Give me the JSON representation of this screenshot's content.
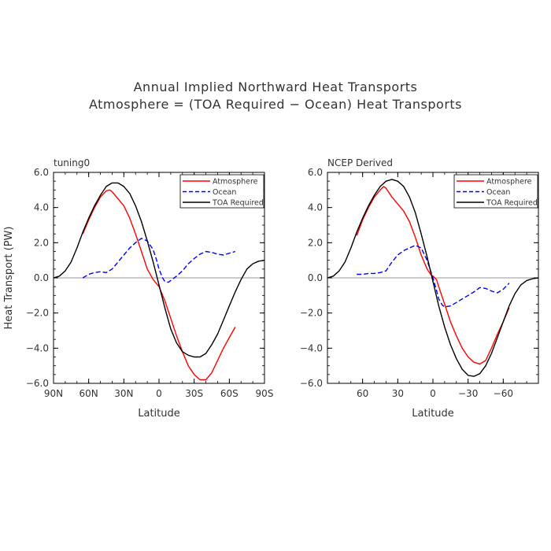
{
  "figure": {
    "title_line1": "Annual Implied Northward Heat Transports",
    "title_line2": "Atmosphere = (TOA Required − Ocean) Heat Transports"
  },
  "colors": {
    "atmosphere": "#ff0000",
    "ocean": "#0000ff",
    "toa": "#000000",
    "zero_line": "#aaaaaa"
  },
  "chart_data": [
    {
      "type": "line",
      "panel_label": "tuning0",
      "ylabel": "Heat Transport (PW)",
      "xlabel": "Latitude",
      "xlim": [
        90,
        -90
      ],
      "ylim": [
        -6,
        6
      ],
      "x_ticks": [
        90,
        60,
        30,
        0,
        -30,
        -60,
        -90
      ],
      "x_tick_labels": [
        "90N",
        "60N",
        "30N",
        "0",
        "30S",
        "60S",
        "90S"
      ],
      "y_ticks": [
        -6,
        -4,
        -2,
        0,
        2,
        4,
        6
      ],
      "y_tick_labels": [
        "−6.0",
        "−4.0",
        "−2.0",
        "0.0",
        "2.0",
        "4.0",
        "6.0"
      ],
      "legend_position": "top-right",
      "series": [
        {
          "name": "Atmosphere",
          "color_key": "atmosphere",
          "dash": "solid",
          "x": [
            65,
            60,
            55,
            50,
            45,
            42,
            40,
            35,
            30,
            25,
            20,
            15,
            10,
            5,
            0,
            -5,
            -10,
            -15,
            -20,
            -25,
            -30,
            -35,
            -40,
            -45,
            -50,
            -55,
            -60,
            -65
          ],
          "y": [
            2.5,
            3.3,
            4.0,
            4.6,
            4.95,
            5.0,
            4.9,
            4.5,
            4.1,
            3.4,
            2.5,
            1.5,
            0.5,
            -0.1,
            -0.5,
            -1.3,
            -2.3,
            -3.3,
            -4.2,
            -5.0,
            -5.5,
            -5.8,
            -5.8,
            -5.4,
            -4.7,
            -4.0,
            -3.4,
            -2.8
          ]
        },
        {
          "name": "Ocean",
          "color_key": "ocean",
          "dash": "dashed",
          "x": [
            65,
            60,
            55,
            50,
            45,
            40,
            35,
            30,
            25,
            20,
            15,
            10,
            5,
            2,
            0,
            -3,
            -5,
            -8,
            -10,
            -15,
            -20,
            -25,
            -30,
            -35,
            -40,
            -45,
            -50,
            -55,
            -60,
            -65
          ],
          "y": [
            0.0,
            0.2,
            0.3,
            0.35,
            0.3,
            0.5,
            0.9,
            1.3,
            1.7,
            2.0,
            2.25,
            2.1,
            1.6,
            1.0,
            0.5,
            0.0,
            -0.2,
            -0.25,
            -0.15,
            0.1,
            0.4,
            0.8,
            1.1,
            1.35,
            1.5,
            1.45,
            1.35,
            1.3,
            1.4,
            1.5
          ]
        },
        {
          "name": "TOA Required",
          "color_key": "toa",
          "dash": "solid",
          "x": [
            90,
            85,
            80,
            75,
            70,
            65,
            60,
            55,
            50,
            45,
            40,
            35,
            30,
            25,
            20,
            15,
            10,
            5,
            0,
            -5,
            -10,
            -15,
            -20,
            -25,
            -30,
            -35,
            -40,
            -45,
            -50,
            -55,
            -60,
            -65,
            -70,
            -75,
            -80,
            -85,
            -90
          ],
          "y": [
            0.0,
            0.1,
            0.4,
            0.9,
            1.7,
            2.6,
            3.4,
            4.1,
            4.7,
            5.2,
            5.4,
            5.4,
            5.2,
            4.8,
            4.1,
            3.2,
            2.1,
            0.9,
            -0.4,
            -1.7,
            -2.9,
            -3.7,
            -4.2,
            -4.4,
            -4.5,
            -4.5,
            -4.3,
            -3.8,
            -3.2,
            -2.4,
            -1.6,
            -0.8,
            -0.1,
            0.5,
            0.8,
            0.95,
            1.0
          ]
        }
      ]
    },
    {
      "type": "line",
      "panel_label": "NCEP Derived",
      "ylabel": "",
      "xlabel": "Latitude",
      "xlim": [
        90,
        -90
      ],
      "ylim": [
        -6,
        6
      ],
      "x_ticks": [
        60,
        30,
        0,
        -30,
        -60
      ],
      "x_tick_labels": [
        "60",
        "30",
        "0",
        "−30",
        "−60"
      ],
      "y_ticks": [
        -6,
        -4,
        -2,
        0,
        2,
        4,
        6
      ],
      "y_tick_labels": [
        "−6.0",
        "−4.0",
        "−2.0",
        "0.0",
        "2.0",
        "4.0",
        "6.0"
      ],
      "legend_position": "top-right",
      "series": [
        {
          "name": "Atmosphere",
          "color_key": "atmosphere",
          "dash": "solid",
          "x": [
            65,
            60,
            55,
            50,
            45,
            42,
            40,
            35,
            30,
            25,
            20,
            15,
            10,
            5,
            2,
            0,
            -3,
            -5,
            -10,
            -15,
            -20,
            -25,
            -30,
            -35,
            -40,
            -45,
            -50,
            -55,
            -60,
            -65
          ],
          "y": [
            2.4,
            3.3,
            4.0,
            4.6,
            5.0,
            5.2,
            5.1,
            4.6,
            4.2,
            3.8,
            3.2,
            2.3,
            1.3,
            0.5,
            0.2,
            0.1,
            -0.1,
            -0.5,
            -1.5,
            -2.5,
            -3.3,
            -4.0,
            -4.5,
            -4.8,
            -4.9,
            -4.7,
            -4.0,
            -3.2,
            -2.5,
            -1.7
          ]
        },
        {
          "name": "Ocean",
          "color_key": "ocean",
          "dash": "dashed",
          "x": [
            65,
            60,
            55,
            50,
            45,
            40,
            35,
            30,
            25,
            20,
            15,
            10,
            5,
            0,
            -3,
            -5,
            -8,
            -10,
            -15,
            -20,
            -25,
            -30,
            -35,
            -40,
            -45,
            -50,
            -55,
            -60,
            -65
          ],
          "y": [
            0.2,
            0.2,
            0.25,
            0.25,
            0.3,
            0.4,
            0.9,
            1.3,
            1.55,
            1.7,
            1.85,
            1.7,
            1.0,
            0.0,
            -0.7,
            -1.2,
            -1.55,
            -1.65,
            -1.6,
            -1.4,
            -1.2,
            -1.0,
            -0.8,
            -0.55,
            -0.6,
            -0.75,
            -0.85,
            -0.65,
            -0.3
          ]
        },
        {
          "name": "TOA Required",
          "color_key": "toa",
          "dash": "solid",
          "x": [
            90,
            85,
            80,
            75,
            70,
            65,
            60,
            55,
            50,
            45,
            40,
            35,
            30,
            25,
            20,
            15,
            10,
            5,
            0,
            -5,
            -10,
            -15,
            -20,
            -25,
            -30,
            -35,
            -40,
            -45,
            -50,
            -55,
            -60,
            -65,
            -70,
            -75,
            -80,
            -85,
            -90
          ],
          "y": [
            0.0,
            0.1,
            0.4,
            0.9,
            1.7,
            2.6,
            3.4,
            4.1,
            4.7,
            5.2,
            5.5,
            5.6,
            5.5,
            5.2,
            4.6,
            3.7,
            2.5,
            1.2,
            -0.2,
            -1.6,
            -2.8,
            -3.8,
            -4.6,
            -5.2,
            -5.55,
            -5.6,
            -5.45,
            -5.0,
            -4.3,
            -3.4,
            -2.5,
            -1.6,
            -0.9,
            -0.4,
            -0.15,
            -0.05,
            0.0
          ]
        }
      ]
    }
  ]
}
